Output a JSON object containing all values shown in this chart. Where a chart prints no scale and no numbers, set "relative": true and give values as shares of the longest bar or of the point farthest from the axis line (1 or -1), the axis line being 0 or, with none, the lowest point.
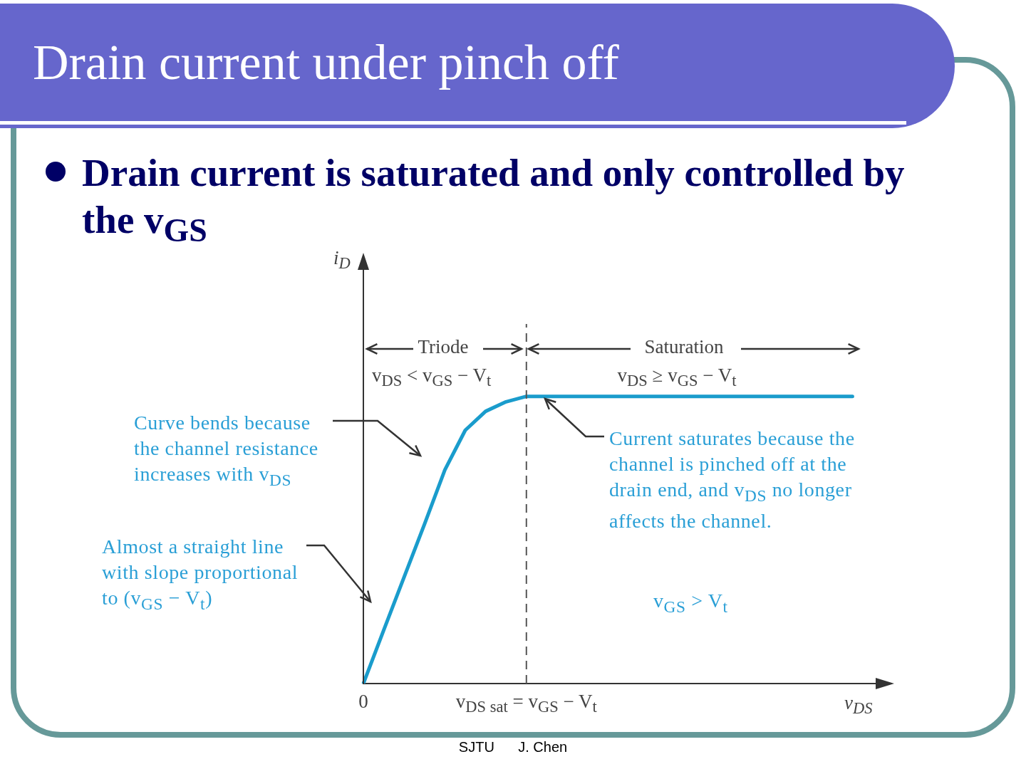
{
  "chart_data": {
    "type": "line",
    "title": "Drain current under pinch off",
    "subtitle": "Drain current is saturated and only controlled by the v$_{GS}$",
    "xlabel": "v$_{DS}$",
    "relative": true,
    "color": "#1a9ccc",
    "marker": "none",
    "line_style": "solid",
    "legend": false,
    "grid": false,
    "categories": [
      "0",
      null,
      null,
      null,
      null,
      null,
      null,
      null,
      "v$_{DS sat}$ = v$_{GS}$ − V$_{t}$",
      null,
      null,
      null,
      null,
      null,
      null,
      null,
      null,
      null,
      null,
      null,
      null,
      null,
      null,
      null,
      null,
      null
    ],
    "values": [
      0,
      0.186,
      0.371,
      0.555,
      0.744,
      0.882,
      0.948,
      0.981,
      1,
      1,
      1,
      1,
      1,
      1,
      1,
      1,
      1,
      1,
      1,
      1,
      1,
      1,
      1,
      1,
      1,
      null
    ],
    "ref_lines": [
      {
        "axis": "x",
        "value": "v$_{DS sat}$ = v$_{GS}$ − V$_{t}$",
        "color": "#555555",
        "line_style": "dashed"
      }
    ],
    "annotations": [
      "Triode",
      "v$_{DS}$ < v$_{GS}$ − V$_{t}$",
      "Saturation",
      "v$_{DS}$ ≥ v$_{GS}$ − V$_{t}$",
      "Curve bends because the channel resistance increases with v$_{DS}$",
      "Current saturates because the channel is pinched off at the drain end, and v$_{DS}$ no longer affects the channel.",
      "Almost a straight line with slope proportional to (v$_{GS}$ − V$_{t}$)",
      "v$_{GS}$ > V$_{t}$",
      "i$_{D}$",
      "SJTU      J. Chen"
    ]
  }
}
